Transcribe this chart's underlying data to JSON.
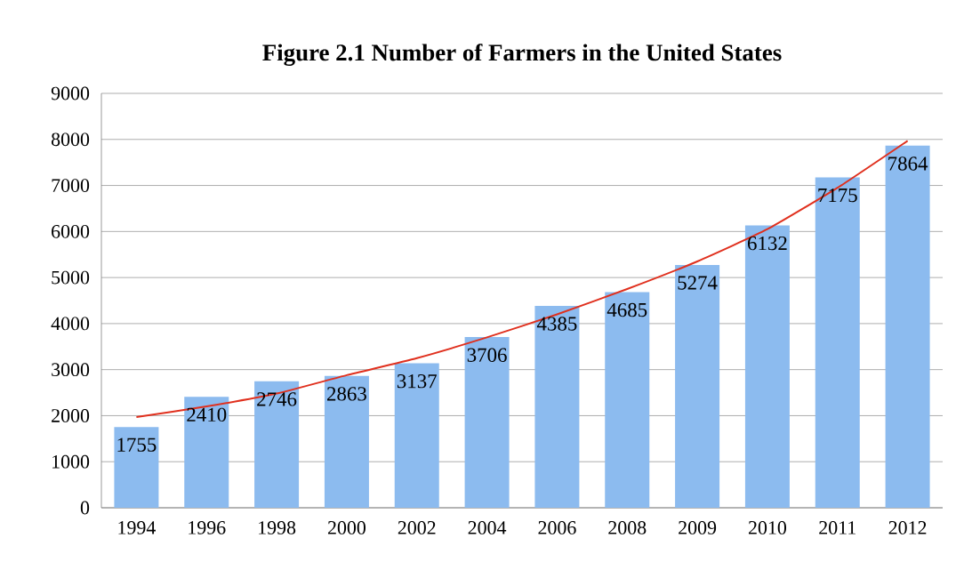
{
  "chart_data": {
    "type": "bar",
    "title": "Figure 2.1 Number of Farmers in the United States",
    "categories": [
      "1994",
      "1996",
      "1998",
      "2000",
      "2002",
      "2004",
      "2006",
      "2008",
      "2009",
      "2010",
      "2011",
      "2012"
    ],
    "series": [
      {
        "values": [
          1755,
          2410,
          2746,
          2863,
          3137,
          3706,
          4385,
          4685,
          5274,
          6132,
          7175,
          7864
        ],
        "color": "#8cbbef",
        "value_labels": [
          "1755",
          "2410",
          "2746",
          "2863",
          "3137",
          "3706",
          "4385",
          "4685",
          "5274",
          "6132",
          "7175",
          "7864"
        ]
      },
      {
        "type": "line",
        "values": [
          1970,
          2200,
          2480,
          2880,
          3250,
          3700,
          4200,
          4750,
          5350,
          6050,
          6950,
          7970
        ],
        "color": "#e0301e"
      }
    ],
    "ylim": [
      0,
      9000
    ],
    "yticks": [
      0,
      1000,
      2000,
      3000,
      4000,
      5000,
      6000,
      7000,
      8000,
      9000
    ],
    "grid": "y"
  }
}
